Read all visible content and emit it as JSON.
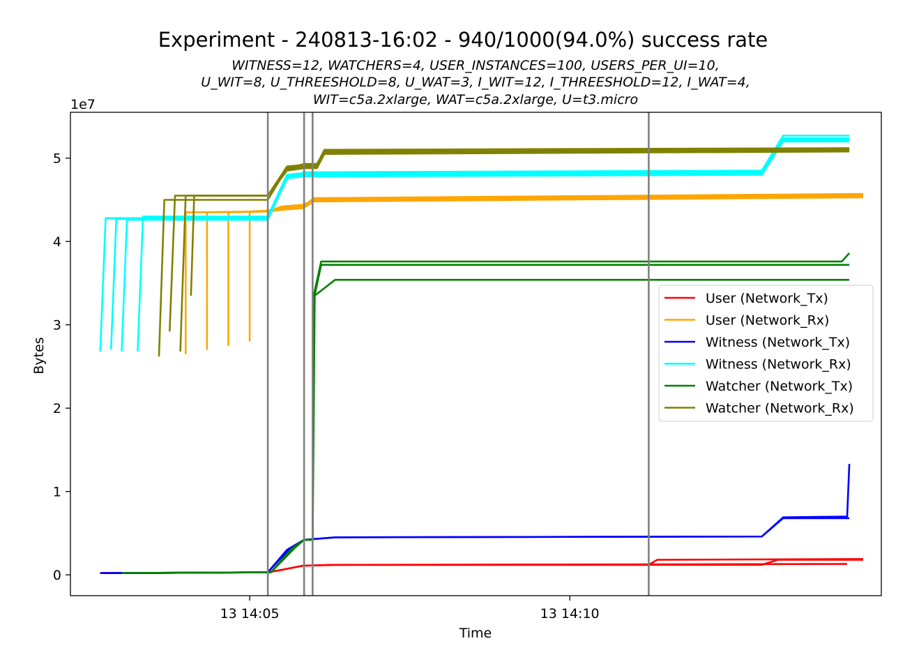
{
  "chart_data": {
    "type": "line",
    "title": "Experiment - 240813-16:02 - 940/1000(94.0%) success rate",
    "subtitle_lines": [
      "WITNESS=12, WATCHERS=4, USER_INSTANCES=100, USERS_PER_UI=10,",
      "U_WIT=8, U_THREESHOLD=8, U_WAT=3, I_WIT=12, I_THREESHOLD=12, I_WAT=4,",
      "WIT=c5a.2xlarge, WAT=c5a.2xlarge, U=t3.micro"
    ],
    "xlabel": "Time",
    "ylabel": "Bytes",
    "y_offset_label": "1e7",
    "y_scale_factor": 10000000,
    "ylim": [
      -0.25,
      5.55
    ],
    "xlim": [
      "14:02:12",
      "14:14:52"
    ],
    "x_ticks": [
      {
        "t": "14:05:00",
        "label": "13 14:05"
      },
      {
        "t": "14:10:00",
        "label": "13 14:10"
      }
    ],
    "y_ticks": [
      {
        "v": 0,
        "label": "0"
      },
      {
        "v": 1,
        "label": "1"
      },
      {
        "v": 2,
        "label": "2"
      },
      {
        "v": 3,
        "label": "3"
      },
      {
        "v": 4,
        "label": "4"
      },
      {
        "v": 5,
        "label": "5"
      }
    ],
    "vertical_lines": [
      "14:05:17",
      "14:05:51",
      "14:05:59",
      "14:11:14"
    ],
    "vertical_line_color": "#808080",
    "legend_position": "center-right",
    "series": [
      {
        "name": "User (Network_Tx)",
        "color": "#ff0000",
        "lines": [
          [
            [
              "14:02:40",
              0.02
            ],
            [
              "14:05:17",
              0.03
            ],
            [
              "14:05:30",
              0.06
            ],
            [
              "14:05:50",
              0.11
            ],
            [
              "14:06:20",
              0.12
            ],
            [
              "14:11:14",
              0.12
            ],
            [
              "14:11:22",
              0.18
            ],
            [
              "14:14:35",
              0.19
            ]
          ],
          [
            [
              "14:02:40",
              0.02
            ],
            [
              "14:05:17",
              0.03
            ],
            [
              "14:05:30",
              0.06
            ],
            [
              "14:05:50",
              0.11
            ],
            [
              "14:06:20",
              0.12
            ],
            [
              "14:13:00",
              0.12
            ],
            [
              "14:13:15",
              0.18
            ],
            [
              "14:14:35",
              0.18
            ]
          ],
          [
            [
              "14:02:40",
              0.02
            ],
            [
              "14:05:17",
              0.03
            ],
            [
              "14:05:30",
              0.06
            ],
            [
              "14:05:50",
              0.11
            ],
            [
              "14:06:20",
              0.12
            ],
            [
              "14:14:20",
              0.13
            ]
          ]
        ]
      },
      {
        "name": "User (Network_Rx)",
        "color": "#ffa500",
        "lines": [
          [
            [
              "14:04:00",
              2.65
            ],
            [
              "14:04:00",
              4.35
            ],
            [
              "14:05:17",
              4.36
            ],
            [
              "14:05:30",
              4.4
            ],
            [
              "14:05:50",
              4.42
            ],
            [
              "14:06:00",
              4.52
            ],
            [
              "14:14:35",
              4.57
            ]
          ],
          [
            [
              "14:04:20",
              2.7
            ],
            [
              "14:04:20",
              4.35
            ],
            [
              "14:05:17",
              4.36
            ],
            [
              "14:05:30",
              4.38
            ],
            [
              "14:05:50",
              4.4
            ],
            [
              "14:06:00",
              4.48
            ],
            [
              "14:14:35",
              4.53
            ]
          ],
          [
            [
              "14:04:40",
              2.75
            ],
            [
              "14:04:40",
              4.35
            ],
            [
              "14:05:17",
              4.36
            ],
            [
              "14:05:30",
              4.42
            ],
            [
              "14:05:50",
              4.44
            ],
            [
              "14:06:00",
              4.5
            ],
            [
              "14:14:35",
              4.55
            ]
          ],
          [
            [
              "14:05:00",
              2.8
            ],
            [
              "14:05:00",
              4.36
            ],
            [
              "14:05:17",
              4.37
            ],
            [
              "14:05:30",
              4.41
            ],
            [
              "14:05:50",
              4.43
            ],
            [
              "14:06:00",
              4.51
            ],
            [
              "14:14:35",
              4.56
            ]
          ]
        ]
      },
      {
        "name": "Witness (Network_Tx)",
        "color": "#0000ff",
        "lines": [
          [
            [
              "14:02:40",
              0.02
            ],
            [
              "14:05:17",
              0.03
            ],
            [
              "14:05:35",
              0.3
            ],
            [
              "14:05:51",
              0.42
            ],
            [
              "14:06:20",
              0.45
            ],
            [
              "14:13:00",
              0.46
            ],
            [
              "14:13:20",
              0.69
            ],
            [
              "14:14:20",
              0.7
            ],
            [
              "14:14:22",
              1.33
            ]
          ],
          [
            [
              "14:02:40",
              0.02
            ],
            [
              "14:05:17",
              0.03
            ],
            [
              "14:05:38",
              0.32
            ],
            [
              "14:05:51",
              0.42
            ],
            [
              "14:06:20",
              0.45
            ],
            [
              "14:13:00",
              0.46
            ],
            [
              "14:13:20",
              0.68
            ],
            [
              "14:14:22",
              0.68
            ]
          ]
        ]
      },
      {
        "name": "Witness (Network_Rx)",
        "color": "#00ffff",
        "lines": [
          [
            [
              "14:02:40",
              2.68
            ],
            [
              "14:02:45",
              4.28
            ],
            [
              "14:05:17",
              4.28
            ],
            [
              "14:05:35",
              4.75
            ],
            [
              "14:05:51",
              4.83
            ],
            [
              "14:13:00",
              4.85
            ],
            [
              "14:13:20",
              5.27
            ],
            [
              "14:14:22",
              5.27
            ]
          ],
          [
            [
              "14:02:50",
              2.7
            ],
            [
              "14:02:55",
              4.27
            ],
            [
              "14:05:17",
              4.27
            ],
            [
              "14:05:35",
              4.78
            ],
            [
              "14:05:51",
              4.8
            ],
            [
              "14:13:00",
              4.82
            ],
            [
              "14:13:20",
              5.22
            ],
            [
              "14:14:22",
              5.22
            ]
          ],
          [
            [
              "14:03:00",
              2.68
            ],
            [
              "14:03:05",
              4.26
            ],
            [
              "14:05:17",
              4.26
            ],
            [
              "14:05:35",
              4.76
            ],
            [
              "14:05:51",
              4.78
            ],
            [
              "14:13:00",
              4.8
            ],
            [
              "14:13:20",
              5.2
            ],
            [
              "14:14:22",
              5.2
            ]
          ],
          [
            [
              "14:03:15",
              2.68
            ],
            [
              "14:03:20",
              4.3
            ],
            [
              "14:05:17",
              4.3
            ],
            [
              "14:05:35",
              4.8
            ],
            [
              "14:05:51",
              4.82
            ],
            [
              "14:13:00",
              4.84
            ],
            [
              "14:13:20",
              5.24
            ],
            [
              "14:14:22",
              5.24
            ]
          ]
        ]
      },
      {
        "name": "Watcher (Network_Tx)",
        "color": "#008000",
        "lines": [
          [
            [
              "14:03:00",
              0.02
            ],
            [
              "14:05:20",
              0.03
            ],
            [
              "14:05:40",
              0.32
            ],
            [
              "14:05:51",
              0.42
            ],
            [
              "14:05:59",
              0.42
            ],
            [
              "14:06:00",
              3.35
            ],
            [
              "14:06:07",
              3.76
            ],
            [
              "14:14:15",
              3.76
            ],
            [
              "14:14:22",
              3.86
            ]
          ],
          [
            [
              "14:03:00",
              0.02
            ],
            [
              "14:05:20",
              0.03
            ],
            [
              "14:05:40",
              0.32
            ],
            [
              "14:05:51",
              0.42
            ],
            [
              "14:05:59",
              0.42
            ],
            [
              "14:06:00",
              3.3
            ],
            [
              "14:06:07",
              3.72
            ],
            [
              "14:14:22",
              3.72
            ]
          ],
          [
            [
              "14:03:00",
              0.02
            ],
            [
              "14:05:20",
              0.03
            ],
            [
              "14:05:42",
              0.32
            ],
            [
              "14:05:51",
              0.42
            ],
            [
              "14:05:59",
              0.42
            ],
            [
              "14:06:01",
              3.35
            ],
            [
              "14:06:20",
              3.54
            ],
            [
              "14:14:22",
              3.54
            ]
          ]
        ]
      },
      {
        "name": "Watcher (Network_Rx)",
        "color": "#808000",
        "lines": [
          [
            [
              "14:03:35",
              2.62
            ],
            [
              "14:03:40",
              4.5
            ],
            [
              "14:05:17",
              4.5
            ],
            [
              "14:05:35",
              4.88
            ],
            [
              "14:05:51",
              4.93
            ],
            [
              "14:06:03",
              4.93
            ],
            [
              "14:06:10",
              5.08
            ],
            [
              "14:14:22",
              5.1
            ]
          ],
          [
            [
              "14:03:45",
              2.92
            ],
            [
              "14:03:50",
              4.55
            ],
            [
              "14:05:17",
              4.55
            ],
            [
              "14:05:35",
              4.85
            ],
            [
              "14:05:51",
              4.88
            ],
            [
              "14:06:03",
              4.88
            ],
            [
              "14:06:10",
              5.05
            ],
            [
              "14:14:22",
              5.08
            ]
          ],
          [
            [
              "14:03:55",
              2.68
            ],
            [
              "14:04:00",
              4.55
            ],
            [
              "14:05:17",
              4.55
            ],
            [
              "14:05:35",
              4.9
            ],
            [
              "14:05:51",
              4.92
            ],
            [
              "14:06:03",
              4.92
            ],
            [
              "14:06:10",
              5.1
            ],
            [
              "14:14:22",
              5.12
            ]
          ],
          [
            [
              "14:04:05",
              3.35
            ],
            [
              "14:04:08",
              4.55
            ],
            [
              "14:05:17",
              4.55
            ],
            [
              "14:05:35",
              4.87
            ],
            [
              "14:05:51",
              4.9
            ],
            [
              "14:06:03",
              4.9
            ],
            [
              "14:06:10",
              5.07
            ],
            [
              "14:14:22",
              5.1
            ]
          ]
        ]
      }
    ]
  }
}
